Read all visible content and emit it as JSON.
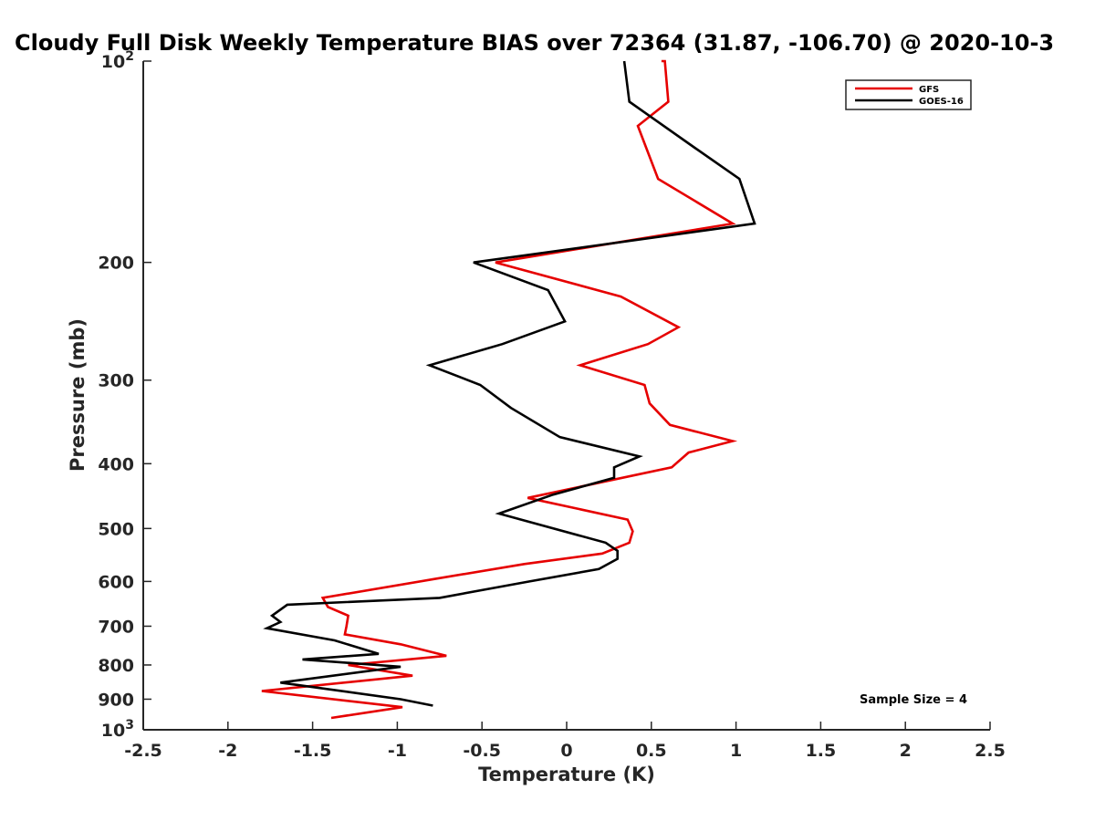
{
  "chart_data": {
    "type": "line",
    "title": "Cloudy Full Disk Weekly Temperature BIAS over 72364 (31.87, -106.70) @ 2020-10-3",
    "xlabel": "Temperature (K)",
    "ylabel": "Pressure (mb)",
    "xlim": [
      -2.5,
      2.5
    ],
    "ylim": [
      100,
      1000
    ],
    "y_scale": "log",
    "y_reversed": true,
    "grid": false,
    "legend_position": "top-right",
    "x_ticks": [
      {
        "value": -2.5,
        "label": "-2.5"
      },
      {
        "value": -2,
        "label": "-2"
      },
      {
        "value": -1.5,
        "label": "-1.5"
      },
      {
        "value": -1,
        "label": "-1"
      },
      {
        "value": -0.5,
        "label": "-0.5"
      },
      {
        "value": 0,
        "label": "0"
      },
      {
        "value": 0.5,
        "label": "0.5"
      },
      {
        "value": 1,
        "label": "1"
      },
      {
        "value": 1.5,
        "label": "1.5"
      },
      {
        "value": 2,
        "label": "2"
      },
      {
        "value": 2.5,
        "label": "2.5"
      }
    ],
    "y_ticks": [
      {
        "value": 100,
        "label": "10",
        "exp": "2"
      },
      {
        "value": 200,
        "label": "200"
      },
      {
        "value": 300,
        "label": "300"
      },
      {
        "value": 400,
        "label": "400"
      },
      {
        "value": 500,
        "label": "500"
      },
      {
        "value": 600,
        "label": "600"
      },
      {
        "value": 700,
        "label": "700"
      },
      {
        "value": 800,
        "label": "800"
      },
      {
        "value": 900,
        "label": "900"
      },
      {
        "value": 1000,
        "label": "10",
        "exp": "3"
      }
    ],
    "series": [
      {
        "name": "GFS",
        "color": "#e60000",
        "points": [
          [
            0.56,
            100
          ],
          [
            0.58,
            100
          ],
          [
            0.6,
            115
          ],
          [
            0.42,
            125
          ],
          [
            0.54,
            150
          ],
          [
            0.98,
            175
          ],
          [
            -0.42,
            200
          ],
          [
            0.32,
            225
          ],
          [
            0.66,
            250
          ],
          [
            0.48,
            265
          ],
          [
            0.08,
            285
          ],
          [
            0.46,
            305
          ],
          [
            0.49,
            325
          ],
          [
            0.61,
            350
          ],
          [
            0.98,
            370
          ],
          [
            0.72,
            385
          ],
          [
            0.62,
            405
          ],
          [
            -0.23,
            450
          ],
          [
            0.36,
            485
          ],
          [
            0.39,
            505
          ],
          [
            0.37,
            525
          ],
          [
            0.21,
            545
          ],
          [
            -0.25,
            565
          ],
          [
            -0.78,
            595
          ],
          [
            -1.44,
            635
          ],
          [
            -1.41,
            655
          ],
          [
            -1.29,
            675
          ],
          [
            -1.3,
            700
          ],
          [
            -1.31,
            720
          ],
          [
            -0.98,
            745
          ],
          [
            -0.71,
            775
          ],
          [
            -1.29,
            800
          ],
          [
            -0.91,
            830
          ],
          [
            -1.8,
            875
          ],
          [
            -0.97,
            925
          ],
          [
            -1.39,
            960
          ]
        ]
      },
      {
        "name": "GOES-16",
        "color": "#000000",
        "points": [
          [
            0.34,
            100
          ],
          [
            0.37,
            115
          ],
          [
            0.76,
            135
          ],
          [
            1.02,
            150
          ],
          [
            1.11,
            175
          ],
          [
            -0.55,
            200
          ],
          [
            -0.11,
            220
          ],
          [
            -0.01,
            245
          ],
          [
            -0.38,
            265
          ],
          [
            -0.81,
            285
          ],
          [
            -0.51,
            305
          ],
          [
            -0.33,
            330
          ],
          [
            -0.04,
            365
          ],
          [
            0.43,
            390
          ],
          [
            0.28,
            405
          ],
          [
            0.28,
            420
          ],
          [
            -0.08,
            445
          ],
          [
            -0.4,
            475
          ],
          [
            0.23,
            525
          ],
          [
            0.3,
            540
          ],
          [
            0.3,
            555
          ],
          [
            0.19,
            575
          ],
          [
            -0.22,
            600
          ],
          [
            -0.75,
            635
          ],
          [
            -1.65,
            650
          ],
          [
            -1.74,
            675
          ],
          [
            -1.69,
            690
          ],
          [
            -1.77,
            705
          ],
          [
            -1.37,
            735
          ],
          [
            -1.11,
            770
          ],
          [
            -1.56,
            785
          ],
          [
            -0.98,
            805
          ],
          [
            -1.69,
            850
          ],
          [
            -0.98,
            900
          ],
          [
            -0.79,
            920
          ]
        ]
      }
    ],
    "annotation": "Sample Size = 4"
  }
}
